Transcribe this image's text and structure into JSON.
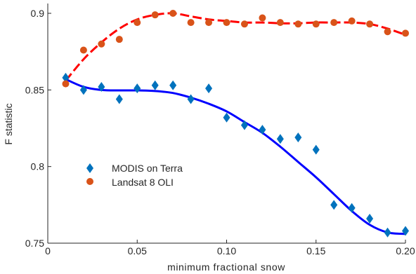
{
  "chart_data": {
    "type": "scatter",
    "title": "",
    "xlabel": "minimum fractional snow",
    "ylabel": "F statistic",
    "xlim": [
      0,
      0.2
    ],
    "ylim": [
      0.75,
      0.9
    ],
    "xticks": [
      0,
      0.05,
      0.1,
      0.15,
      0.2
    ],
    "xtick_labels": [
      "0",
      "0.05",
      "0.10",
      "0.15",
      "0.20"
    ],
    "yticks": [
      0.75,
      0.8,
      0.85,
      0.9
    ],
    "ytick_labels": [
      "0.75",
      "0.8",
      "0.85",
      "0.9"
    ],
    "grid": false,
    "legend_position": "lower-left",
    "series": [
      {
        "name": "MODIS on Terra",
        "marker": "diamond",
        "color": "#0072BD",
        "x": [
          0.01,
          0.02,
          0.03,
          0.04,
          0.05,
          0.06,
          0.07,
          0.08,
          0.09,
          0.1,
          0.11,
          0.12,
          0.13,
          0.14,
          0.15,
          0.16,
          0.17,
          0.18,
          0.19,
          0.2
        ],
        "y": [
          0.858,
          0.85,
          0.852,
          0.844,
          0.851,
          0.853,
          0.853,
          0.844,
          0.851,
          0.832,
          0.827,
          0.824,
          0.818,
          0.819,
          0.811,
          0.775,
          0.773,
          0.766,
          0.757,
          0.758
        ],
        "fit": {
          "color": "#0000FF",
          "style": "solid",
          "x": [
            0.01,
            0.02,
            0.03,
            0.04,
            0.05,
            0.06,
            0.07,
            0.08,
            0.09,
            0.1,
            0.11,
            0.12,
            0.13,
            0.14,
            0.15,
            0.16,
            0.17,
            0.18,
            0.19,
            0.2
          ],
          "y": [
            0.857,
            0.852,
            0.85,
            0.8497,
            0.8497,
            0.8493,
            0.848,
            0.845,
            0.841,
            0.836,
            0.829,
            0.822,
            0.813,
            0.803,
            0.793,
            0.782,
            0.771,
            0.762,
            0.757,
            0.756
          ]
        }
      },
      {
        "name": "Landsat 8 OLI",
        "marker": "circle",
        "color": "#D95319",
        "x": [
          0.01,
          0.02,
          0.03,
          0.04,
          0.05,
          0.06,
          0.07,
          0.08,
          0.09,
          0.1,
          0.11,
          0.12,
          0.13,
          0.14,
          0.15,
          0.16,
          0.17,
          0.18,
          0.19,
          0.2
        ],
        "y": [
          0.854,
          0.876,
          0.88,
          0.883,
          0.894,
          0.899,
          0.9,
          0.894,
          0.894,
          0.894,
          0.893,
          0.897,
          0.894,
          0.893,
          0.893,
          0.894,
          0.895,
          0.893,
          0.888,
          0.887
        ],
        "fit": {
          "color": "#FF0000",
          "style": "dashed",
          "x": [
            0.01,
            0.02,
            0.03,
            0.04,
            0.05,
            0.06,
            0.07,
            0.08,
            0.09,
            0.1,
            0.11,
            0.12,
            0.13,
            0.14,
            0.15,
            0.16,
            0.17,
            0.18,
            0.19,
            0.2
          ],
          "y": [
            0.856,
            0.87,
            0.881,
            0.89,
            0.896,
            0.899,
            0.9,
            0.898,
            0.896,
            0.895,
            0.894,
            0.894,
            0.8935,
            0.8935,
            0.894,
            0.894,
            0.894,
            0.893,
            0.89,
            0.886
          ]
        }
      }
    ]
  }
}
